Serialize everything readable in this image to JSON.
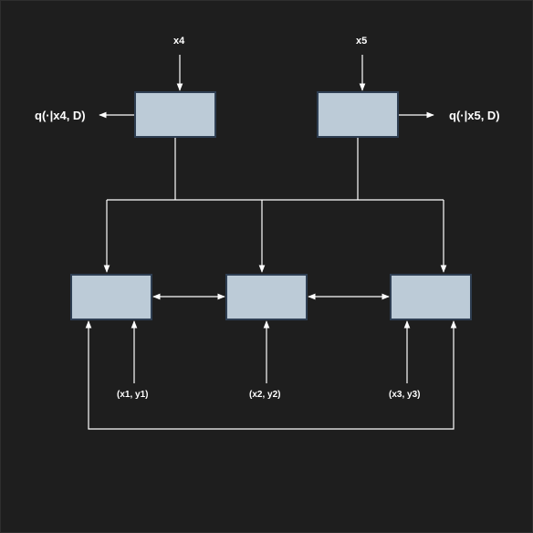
{
  "inputs": {
    "top_left": "x4",
    "top_right": "x5",
    "bottom_1": "(x1, y1)",
    "bottom_2": "(x2, y2)",
    "bottom_3": "(x3, y3)"
  },
  "outputs": {
    "left": "q(·|x4, D)",
    "right": "q(·|x5, D)"
  },
  "colors": {
    "background": "#1e1e1e",
    "box_fill": "#bccbd7",
    "box_border": "#2e3e52",
    "line": "#ffffff"
  }
}
